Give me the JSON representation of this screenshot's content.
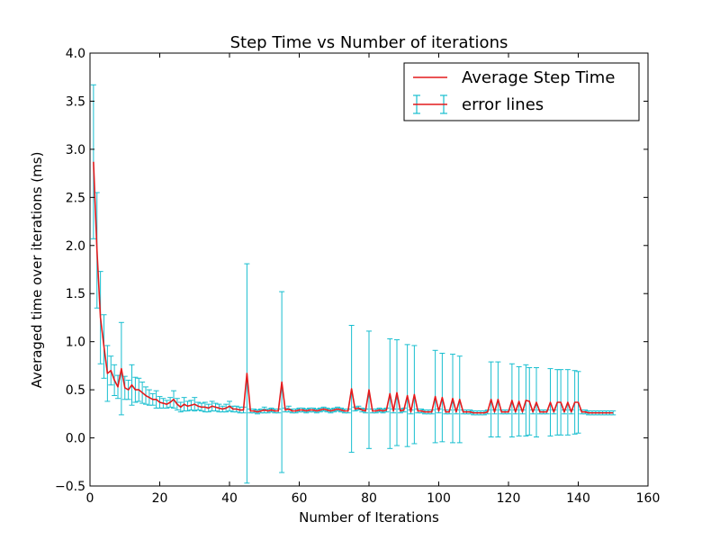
{
  "chart_data": {
    "type": "line",
    "title": "Step Time vs Number of iterations",
    "xlabel": "Number of Iterations",
    "ylabel": "Averaged time over iterations (ms)",
    "xlim": [
      0,
      160
    ],
    "ylim": [
      -0.5,
      4.0
    ],
    "xticks": [
      0,
      20,
      40,
      60,
      80,
      100,
      120,
      140,
      160
    ],
    "yticks": [
      -0.5,
      0.0,
      0.5,
      1.0,
      1.5,
      2.0,
      2.5,
      3.0,
      3.5,
      4.0
    ],
    "xtick_labels": [
      "0",
      "20",
      "40",
      "60",
      "80",
      "100",
      "120",
      "140",
      "160"
    ],
    "ytick_labels": [
      "−0.5",
      "0.0",
      "0.5",
      "1.0",
      "1.5",
      "2.0",
      "2.5",
      "3.0",
      "3.5",
      "4.0"
    ],
    "grid": false,
    "legend_position": "top-right",
    "legend": [
      {
        "label": "Average Step Time",
        "kind": "line"
      },
      {
        "label": "error lines",
        "kind": "errorbar"
      }
    ],
    "colors": {
      "line": "#e31a1c",
      "errorbar": "#17becf"
    },
    "series": [
      {
        "name": "Average Step Time",
        "x": [
          1,
          2,
          3,
          4,
          5,
          6,
          7,
          8,
          9,
          10,
          11,
          12,
          13,
          14,
          15,
          16,
          17,
          18,
          19,
          20,
          21,
          22,
          23,
          24,
          25,
          26,
          27,
          28,
          29,
          30,
          31,
          32,
          33,
          34,
          35,
          36,
          37,
          38,
          39,
          40,
          41,
          42,
          43,
          44,
          45,
          46,
          47,
          48,
          49,
          50,
          51,
          52,
          53,
          54,
          55,
          56,
          57,
          58,
          59,
          60,
          61,
          62,
          63,
          64,
          65,
          66,
          67,
          68,
          69,
          70,
          71,
          72,
          73,
          74,
          75,
          76,
          77,
          78,
          79,
          80,
          81,
          82,
          83,
          84,
          85,
          86,
          87,
          88,
          89,
          90,
          91,
          92,
          93,
          94,
          95,
          96,
          97,
          98,
          99,
          100,
          101,
          102,
          103,
          104,
          105,
          106,
          107,
          108,
          109,
          110,
          111,
          112,
          113,
          114,
          115,
          116,
          117,
          118,
          119,
          120,
          121,
          122,
          123,
          124,
          125,
          126,
          127,
          128,
          129,
          130,
          131,
          132,
          133,
          134,
          135,
          136,
          137,
          138,
          139,
          140,
          141,
          142,
          143,
          144,
          145,
          146,
          147,
          148,
          149,
          150
        ],
        "y": [
          2.87,
          1.95,
          1.25,
          0.95,
          0.67,
          0.7,
          0.6,
          0.53,
          0.72,
          0.52,
          0.5,
          0.55,
          0.5,
          0.5,
          0.47,
          0.44,
          0.42,
          0.4,
          0.4,
          0.37,
          0.36,
          0.35,
          0.37,
          0.4,
          0.35,
          0.32,
          0.35,
          0.33,
          0.34,
          0.35,
          0.33,
          0.32,
          0.32,
          0.31,
          0.33,
          0.32,
          0.31,
          0.3,
          0.31,
          0.33,
          0.3,
          0.3,
          0.29,
          0.29,
          0.67,
          0.28,
          0.28,
          0.27,
          0.28,
          0.29,
          0.28,
          0.29,
          0.28,
          0.28,
          0.58,
          0.29,
          0.3,
          0.28,
          0.28,
          0.29,
          0.29,
          0.28,
          0.29,
          0.29,
          0.28,
          0.29,
          0.3,
          0.29,
          0.28,
          0.29,
          0.3,
          0.29,
          0.28,
          0.28,
          0.51,
          0.3,
          0.31,
          0.29,
          0.28,
          0.5,
          0.28,
          0.28,
          0.29,
          0.28,
          0.29,
          0.46,
          0.28,
          0.47,
          0.28,
          0.29,
          0.44,
          0.27,
          0.45,
          0.28,
          0.28,
          0.27,
          0.27,
          0.27,
          0.43,
          0.28,
          0.42,
          0.27,
          0.27,
          0.41,
          0.27,
          0.4,
          0.27,
          0.27,
          0.27,
          0.26,
          0.26,
          0.26,
          0.26,
          0.27,
          0.4,
          0.27,
          0.4,
          0.27,
          0.27,
          0.27,
          0.39,
          0.27,
          0.38,
          0.27,
          0.39,
          0.38,
          0.27,
          0.37,
          0.27,
          0.27,
          0.27,
          0.37,
          0.27,
          0.37,
          0.37,
          0.27,
          0.37,
          0.27,
          0.37,
          0.37,
          0.27,
          0.27,
          0.26,
          0.26,
          0.26,
          0.26,
          0.26,
          0.26,
          0.26,
          0.26
        ]
      }
    ],
    "error_bars": {
      "name": "error lines",
      "x": [
        1,
        2,
        3,
        4,
        5,
        6,
        7,
        8,
        9,
        10,
        11,
        12,
        13,
        14,
        15,
        16,
        17,
        18,
        19,
        20,
        21,
        22,
        23,
        24,
        25,
        26,
        27,
        28,
        29,
        30,
        31,
        32,
        33,
        34,
        35,
        36,
        37,
        38,
        39,
        40,
        41,
        42,
        43,
        44,
        45,
        46,
        47,
        48,
        49,
        50,
        51,
        52,
        53,
        54,
        55,
        56,
        57,
        58,
        59,
        60,
        61,
        62,
        63,
        64,
        65,
        66,
        67,
        68,
        69,
        70,
        71,
        72,
        73,
        74,
        75,
        76,
        77,
        78,
        79,
        80,
        81,
        82,
        83,
        84,
        85,
        86,
        87,
        88,
        89,
        90,
        91,
        92,
        93,
        94,
        95,
        96,
        97,
        98,
        99,
        100,
        101,
        102,
        103,
        104,
        105,
        106,
        107,
        108,
        109,
        110,
        111,
        112,
        113,
        114,
        115,
        116,
        117,
        118,
        119,
        120,
        121,
        122,
        123,
        124,
        125,
        126,
        127,
        128,
        129,
        130,
        131,
        132,
        133,
        134,
        135,
        136,
        137,
        138,
        139,
        140,
        141,
        142,
        143,
        144,
        145,
        146,
        147,
        148,
        149,
        150
      ],
      "err": [
        0.8,
        0.6,
        0.48,
        0.33,
        0.29,
        0.15,
        0.16,
        0.12,
        0.48,
        0.12,
        0.1,
        0.21,
        0.13,
        0.12,
        0.11,
        0.09,
        0.08,
        0.06,
        0.09,
        0.06,
        0.05,
        0.04,
        0.05,
        0.09,
        0.06,
        0.05,
        0.07,
        0.05,
        0.05,
        0.07,
        0.04,
        0.04,
        0.05,
        0.04,
        0.05,
        0.04,
        0.04,
        0.03,
        0.04,
        0.05,
        0.03,
        0.03,
        0.03,
        0.03,
        1.14,
        0.02,
        0.02,
        0.02,
        0.02,
        0.03,
        0.02,
        0.02,
        0.02,
        0.02,
        0.94,
        0.02,
        0.03,
        0.02,
        0.02,
        0.02,
        0.02,
        0.02,
        0.02,
        0.02,
        0.02,
        0.02,
        0.02,
        0.02,
        0.02,
        0.02,
        0.02,
        0.02,
        0.02,
        0.02,
        0.66,
        0.02,
        0.02,
        0.02,
        0.02,
        0.61,
        0.02,
        0.02,
        0.02,
        0.02,
        0.02,
        0.57,
        0.02,
        0.55,
        0.02,
        0.02,
        0.53,
        0.02,
        0.51,
        0.02,
        0.02,
        0.02,
        0.02,
        0.02,
        0.48,
        0.02,
        0.46,
        0.02,
        0.02,
        0.46,
        0.02,
        0.45,
        0.02,
        0.02,
        0.02,
        0.02,
        0.02,
        0.02,
        0.02,
        0.02,
        0.39,
        0.02,
        0.39,
        0.02,
        0.02,
        0.02,
        0.38,
        0.02,
        0.36,
        0.02,
        0.37,
        0.35,
        0.02,
        0.36,
        0.02,
        0.02,
        0.02,
        0.35,
        0.02,
        0.34,
        0.34,
        0.02,
        0.34,
        0.02,
        0.33,
        0.32,
        0.02,
        0.02,
        0.02,
        0.02,
        0.02,
        0.02,
        0.02,
        0.02,
        0.02,
        0.02
      ]
    }
  }
}
